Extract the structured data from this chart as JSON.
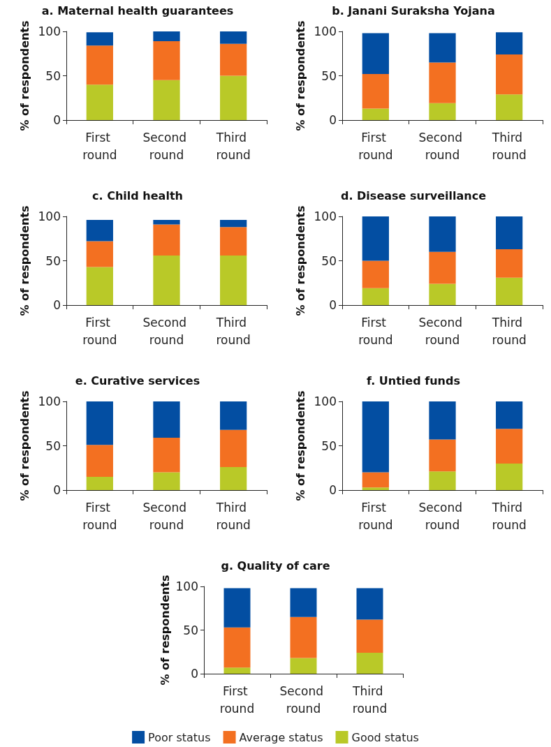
{
  "chart_data": [
    {
      "type": "bar",
      "title": "a. Maternal health guarantees",
      "ylabel": "% of respondents",
      "categories": [
        "First round",
        "Second round",
        "Third round"
      ],
      "stacked": true,
      "ylim": [
        0,
        100
      ],
      "yticks": [
        0,
        50,
        100
      ],
      "grid": false,
      "legend": false,
      "series": [
        {
          "color": "#b9c928",
          "values": [
            40,
            45,
            50
          ]
        },
        {
          "color": "#f37021",
          "values": [
            44,
            44,
            36
          ]
        },
        {
          "color": "#034ea2",
          "values": [
            15,
            11,
            14
          ]
        }
      ]
    },
    {
      "type": "bar",
      "title": "b. Janani Suraksha Yojana",
      "ylabel": "% of respondents",
      "categories": [
        "First round",
        "Second round",
        "Third round"
      ],
      "stacked": true,
      "ylim": [
        0,
        100
      ],
      "yticks": [
        0,
        50,
        100
      ],
      "grid": false,
      "legend": false,
      "series": [
        {
          "color": "#b9c928",
          "values": [
            13,
            19,
            29
          ]
        },
        {
          "color": "#f37021",
          "values": [
            39,
            46,
            45
          ]
        },
        {
          "color": "#034ea2",
          "values": [
            46,
            33,
            25
          ]
        }
      ]
    },
    {
      "type": "bar",
      "title": "c. Child health",
      "ylabel": "% of respondents",
      "categories": [
        "First round",
        "Second round",
        "Third round"
      ],
      "stacked": true,
      "ylim": [
        0,
        100
      ],
      "yticks": [
        0,
        50,
        100
      ],
      "grid": false,
      "legend": false,
      "series": [
        {
          "color": "#b9c928",
          "values": [
            43,
            56,
            56
          ]
        },
        {
          "color": "#f37021",
          "values": [
            29,
            35,
            32
          ]
        },
        {
          "color": "#034ea2",
          "values": [
            24,
            5,
            8
          ]
        }
      ]
    },
    {
      "type": "bar",
      "title": "d. Disease surveillance",
      "ylabel": "% of respondents",
      "categories": [
        "First round",
        "Second round",
        "Third round"
      ],
      "stacked": true,
      "ylim": [
        0,
        100
      ],
      "yticks": [
        0,
        50,
        100
      ],
      "grid": false,
      "legend": false,
      "series": [
        {
          "color": "#b9c928",
          "values": [
            19,
            24,
            31
          ]
        },
        {
          "color": "#f37021",
          "values": [
            31,
            36,
            32
          ]
        },
        {
          "color": "#034ea2",
          "values": [
            50,
            40,
            37
          ]
        }
      ]
    },
    {
      "type": "bar",
      "title": "e. Curative services",
      "ylabel": "% of respondents",
      "categories": [
        "First round",
        "Second round",
        "Third round"
      ],
      "stacked": true,
      "ylim": [
        0,
        100
      ],
      "yticks": [
        0,
        50,
        100
      ],
      "grid": false,
      "legend": false,
      "series": [
        {
          "color": "#b9c928",
          "values": [
            15,
            20,
            26
          ]
        },
        {
          "color": "#f37021",
          "values": [
            36,
            39,
            42
          ]
        },
        {
          "color": "#034ea2",
          "values": [
            49,
            41,
            32
          ]
        }
      ]
    },
    {
      "type": "bar",
      "title": "f. Untied funds",
      "ylabel": "% of respondents",
      "categories": [
        "First round",
        "Second round",
        "Third round"
      ],
      "stacked": true,
      "ylim": [
        0,
        100
      ],
      "yticks": [
        0,
        50,
        100
      ],
      "grid": false,
      "legend": false,
      "series": [
        {
          "color": "#b9c928",
          "values": [
            3,
            21,
            30
          ]
        },
        {
          "color": "#f37021",
          "values": [
            17,
            36,
            39
          ]
        },
        {
          "color": "#034ea2",
          "values": [
            80,
            43,
            31
          ]
        }
      ]
    },
    {
      "type": "bar",
      "title": "g. Quality of care",
      "ylabel": "% of respondents",
      "categories": [
        "First round",
        "Second round",
        "Third round"
      ],
      "stacked": true,
      "ylim": [
        0,
        100
      ],
      "yticks": [
        0,
        50,
        100
      ],
      "grid": false,
      "legend": "bottom",
      "series": [
        {
          "name": "Good status",
          "color": "#b9c928",
          "values": [
            7,
            18,
            24
          ]
        },
        {
          "name": "Average status",
          "color": "#f37021",
          "values": [
            46,
            47,
            38
          ]
        },
        {
          "name": "Poor status",
          "color": "#034ea2",
          "values": [
            45,
            33,
            36
          ]
        }
      ]
    }
  ]
}
